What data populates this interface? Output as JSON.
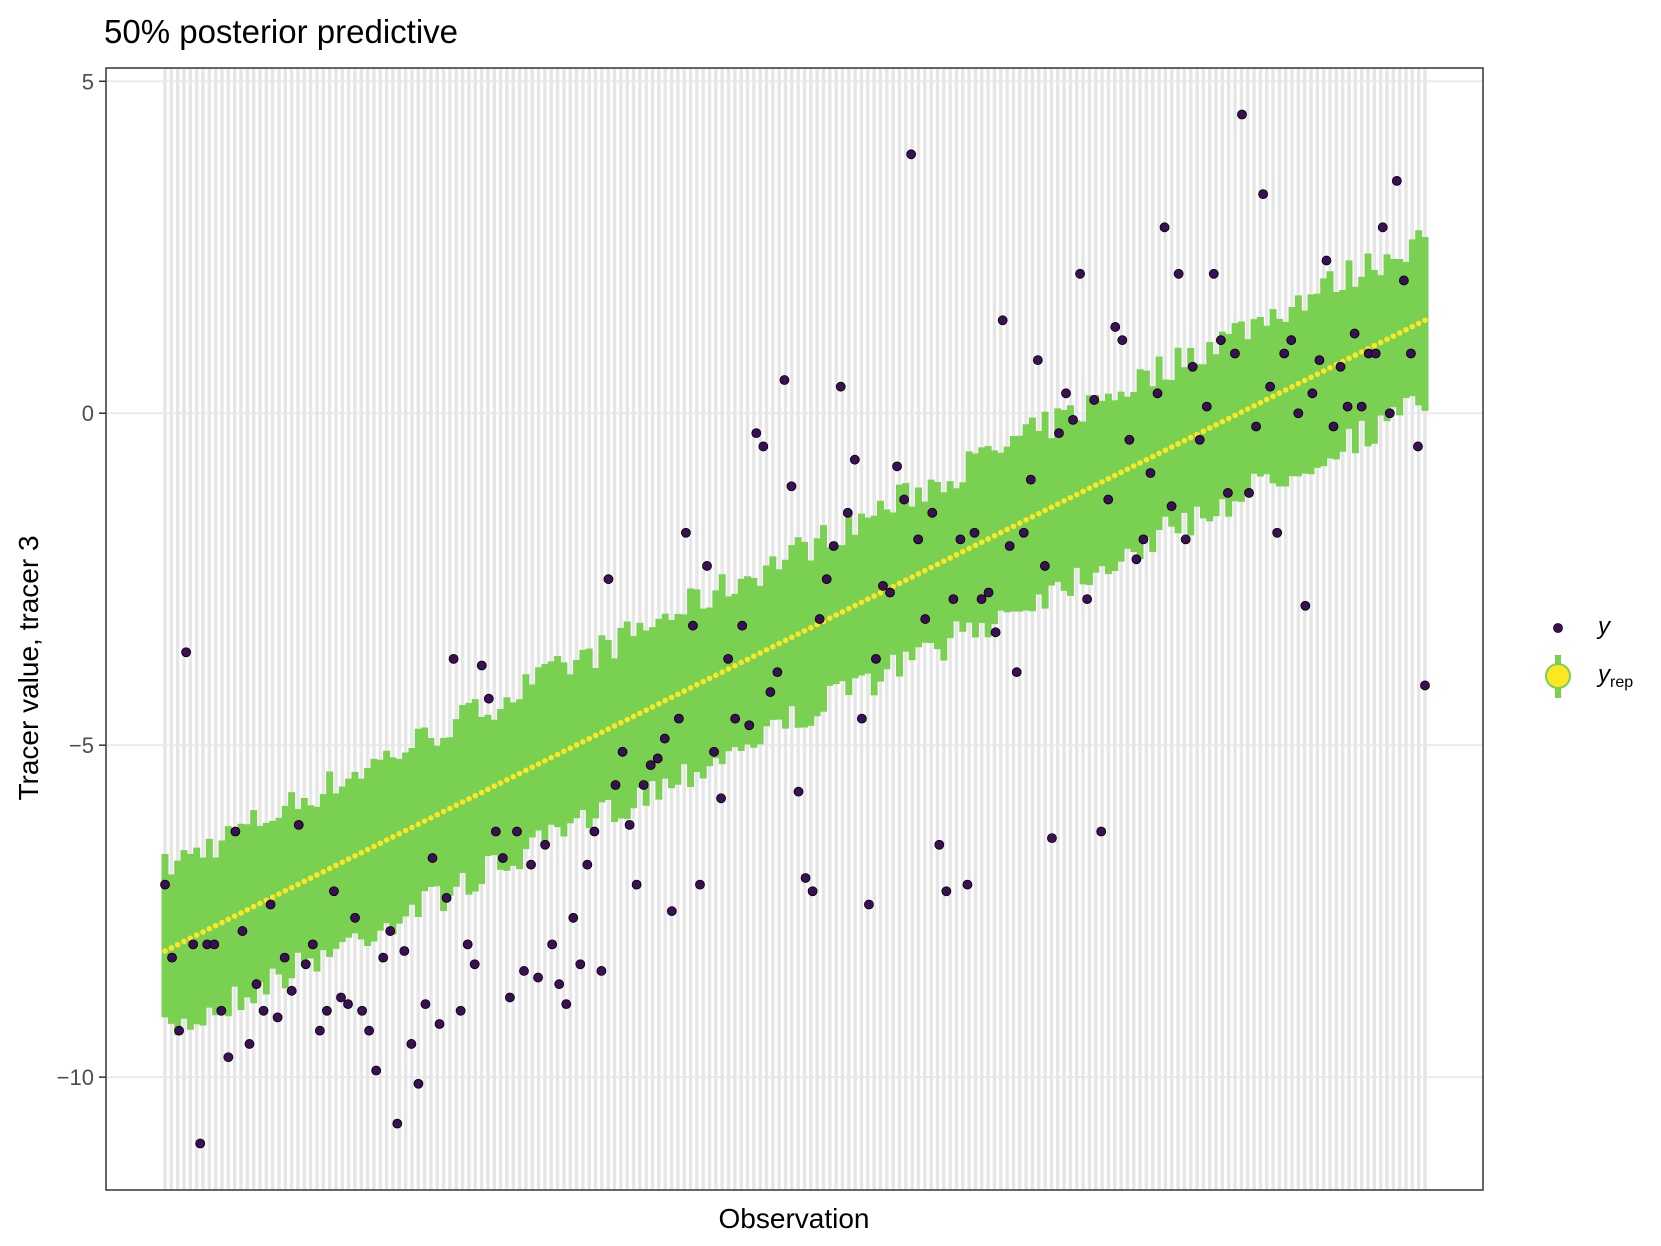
{
  "chart_data": {
    "type": "scatter",
    "title": "50% posterior predictive",
    "xlabel": "Observation",
    "ylabel": "Tracer value, tracer 3",
    "ylim": [
      -11.7,
      5.2
    ],
    "yticks": [
      5,
      0,
      -5,
      -10
    ],
    "ytick_labels": [
      "5",
      "0",
      "−5",
      "−10"
    ],
    "grid": true,
    "legend_position": "right",
    "legend": [
      {
        "key": "y",
        "label": "y",
        "subscript": "",
        "color": "#3b0f56"
      },
      {
        "key": "yrep",
        "label": "y",
        "subscript": "rep",
        "color": "#fde725",
        "bar_color": "#7ad151"
      }
    ],
    "n_obs": 200,
    "yrep_median_start": -8.1,
    "yrep_median_end": 1.4,
    "yrep_interval_half_width": 1.0,
    "y_observed_sample": [
      -7.1,
      -8.2,
      -9.3,
      -3.6,
      -8.0,
      -11.0,
      -8.0,
      -8.0,
      -9.0,
      -9.7,
      -6.3,
      -7.8,
      -9.5,
      -8.6,
      -9.0,
      -7.4,
      -9.1,
      -8.2,
      -8.7,
      -6.2,
      -8.3,
      -8.0,
      -9.3,
      -9.0,
      -7.2,
      -8.8,
      -8.9,
      -7.6,
      -9.0,
      -9.3,
      -9.9,
      -8.2,
      -7.8,
      -10.7,
      -8.1,
      -9.5,
      -10.1,
      -8.9,
      -6.7,
      -9.2,
      -7.3,
      -3.7,
      -9.0,
      -8.0,
      -8.3,
      -3.8,
      -4.3,
      -6.3,
      -6.7,
      -8.8,
      -6.3,
      -8.4,
      -6.8,
      -8.5,
      -6.5,
      -8.0,
      -8.6,
      -8.9,
      -7.6,
      -8.3,
      -6.8,
      -6.3,
      -8.4,
      -2.5,
      -5.6,
      -5.1,
      -6.2,
      -7.1,
      -5.6,
      -5.3,
      -5.2,
      -4.9,
      -7.5,
      -4.6,
      -1.8,
      -3.2,
      -7.1,
      -2.3,
      -5.1,
      -5.8,
      -3.7,
      -4.6,
      -3.2,
      -4.7,
      -0.3,
      -0.5,
      -4.2,
      -3.9,
      0.5,
      -1.1,
      -5.7,
      -7.0,
      -7.2,
      -3.1,
      -2.5,
      -2.0,
      0.4,
      -1.5,
      -0.7,
      -4.6,
      -7.4,
      -3.7,
      -2.6,
      -2.7,
      -0.8,
      -1.3,
      3.9,
      -1.9,
      -3.1,
      -1.5,
      -6.5,
      -7.2,
      -2.8,
      -1.9,
      -7.1,
      -1.8,
      -2.8,
      -2.7,
      -3.3,
      1.4,
      -2.0,
      -3.9,
      -1.8,
      -1.0,
      0.8,
      -2.3,
      -6.4,
      -0.3,
      0.3,
      -0.1,
      2.1,
      -2.8,
      0.2,
      -6.3,
      -1.3,
      1.3,
      1.1,
      -0.4,
      -2.2,
      -1.9,
      -0.9,
      0.3,
      2.8,
      -1.4,
      2.1,
      -1.9,
      0.7,
      -0.4,
      0.1,
      2.1,
      1.1,
      -1.2,
      0.9,
      4.5,
      -1.2,
      -0.2,
      3.3,
      0.4,
      -1.8,
      0.9,
      1.1,
      -0.0,
      -2.9,
      0.3,
      0.8,
      2.3,
      -0.2,
      0.7,
      0.1,
      1.2,
      0.1,
      0.9,
      0.9,
      2.8,
      0.0,
      3.5,
      2.0,
      0.9,
      -0.5,
      -4.1
    ]
  }
}
